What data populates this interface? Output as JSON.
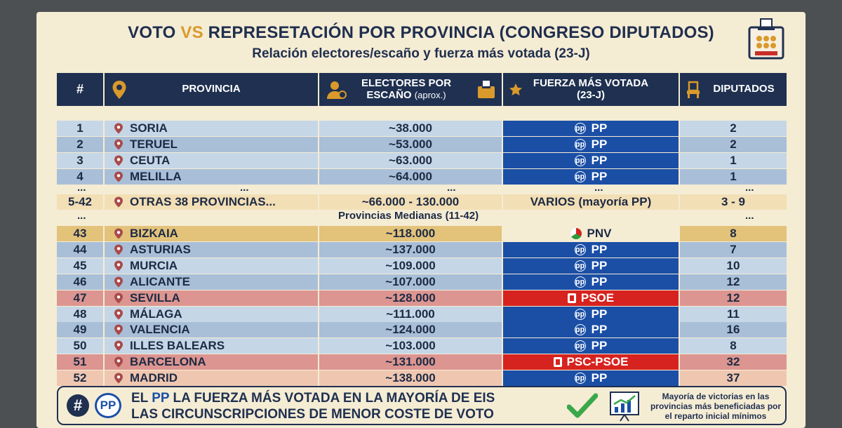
{
  "title": {
    "part1": "VOTO ",
    "vs": "VS",
    "part2": " REPRESETACIÓN POR PROVINCIA (CONGRESO DIPUTADOS)"
  },
  "subtitle": "Relación electores/escaño y fuerza más votada (23-J)",
  "headers": {
    "num": "#",
    "provincia": "PROVINCIA",
    "electores_main": "ELECTORES POR",
    "electores_sub1": "ESCAÑO",
    "electores_sub2": "(aprox.)",
    "fuerza_main": "FUERZA MÁS VOTADA",
    "fuerza_sub": "(23-J)",
    "diputados": "DIPUTADOS"
  },
  "rows_top": [
    {
      "num": "1",
      "prov": "SORIA",
      "elec": "~38.000",
      "party": "PP",
      "dip": "2"
    },
    {
      "num": "2",
      "prov": "TERUEL",
      "elec": "~53.000",
      "party": "PP",
      "dip": "2"
    },
    {
      "num": "3",
      "prov": "CEUTA",
      "elec": "~63.000",
      "party": "PP",
      "dip": "1"
    },
    {
      "num": "4",
      "prov": "MELILLA",
      "elec": "~64.000",
      "party": "PP",
      "dip": "1"
    }
  ],
  "ellipsis": "...",
  "others": {
    "num": "5-42",
    "prov": "OTRAS 38 PROVINCIAS...",
    "elec": "~66.000 - 130.000",
    "party": "VARIOS (mayoría PP)",
    "dip": "3 - 9"
  },
  "medianas_label": "Provincias Medianas (11-42)",
  "rows_bottom": [
    {
      "num": "43",
      "prov": "BIZKAIA",
      "elec": "~118.000",
      "party": "PNV",
      "dip": "8"
    },
    {
      "num": "44",
      "prov": "ASTURIAS",
      "elec": "~137.000",
      "party": "PP",
      "dip": "7"
    },
    {
      "num": "45",
      "prov": "MURCIA",
      "elec": "~109.000",
      "party": "PP",
      "dip": "10"
    },
    {
      "num": "46",
      "prov": "ALICANTE",
      "elec": "~107.000",
      "party": "PP",
      "dip": "12"
    },
    {
      "num": "47",
      "prov": "SEVILLA",
      "elec": "~128.000",
      "party": "PSOE",
      "dip": "12"
    },
    {
      "num": "48",
      "prov": "MÁLAGA",
      "elec": "~111.000",
      "party": "PP",
      "dip": "11"
    },
    {
      "num": "49",
      "prov": "VALENCIA",
      "elec": "~124.000",
      "party": "PP",
      "dip": "16"
    },
    {
      "num": "50",
      "prov": "ILLES BALEARS",
      "elec": "~103.000",
      "party": "PP",
      "dip": "8"
    },
    {
      "num": "51",
      "prov": "BARCELONA",
      "elec": "~131.000",
      "party": "PSC-PSOE",
      "dip": "32"
    },
    {
      "num": "52",
      "prov": "MADRID",
      "elec": "~138.000",
      "party": "PP",
      "dip": "37"
    }
  ],
  "footer": {
    "hash": "#",
    "pp_logo": "PP",
    "line1_a": "EL ",
    "line1_pp": "PP",
    "line1_b": " LA FUERZA MÁS VOTADA EN LA MAYORÍA DE EIS",
    "line2": "LAS CIRCUNSCRIPCIONES DE MENOR COSTE DE VOTO",
    "note1": "Mayoría de victorias en las",
    "note2": "provincias más beneficiadas por",
    "note3": "el reparto inicial mínimos"
  },
  "colors": {
    "navy": "#1f3050",
    "gold": "#d99a2b",
    "pp_blue": "#1b4fa6",
    "psoe_red": "#d6231f",
    "row_blue_a": "#c5d6e7",
    "row_blue_b": "#a9bfd8",
    "row_gold": "#e3c27a",
    "row_red": "#dc9590",
    "row_peach": "#efc7b0"
  },
  "icons": [
    "location-pin-icon",
    "voter-icon",
    "ballot-box-icon",
    "star-icon",
    "chair-icon",
    "checkmark-icon",
    "growth-chart-icon",
    "hashtag-icon",
    "pp-logo"
  ]
}
